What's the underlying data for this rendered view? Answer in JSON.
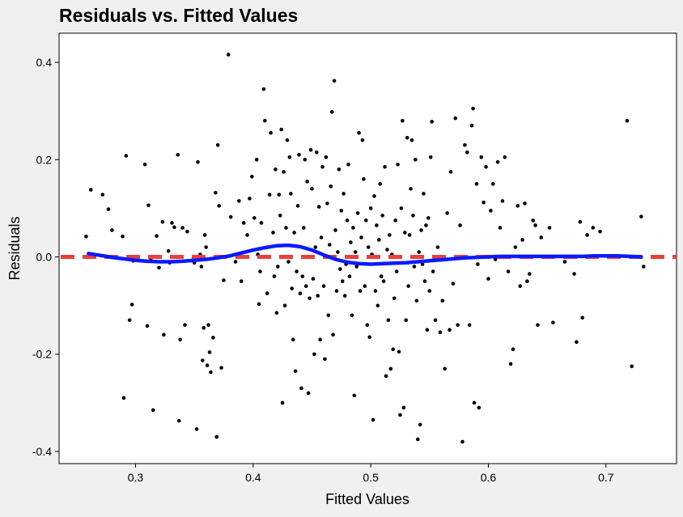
{
  "chart_data": {
    "type": "scatter",
    "title": "Residuals vs. Fitted Values",
    "xlabel": "Fitted Values",
    "ylabel": "Residuals",
    "xlim": [
      0.235,
      0.76
    ],
    "ylim": [
      -0.425,
      0.46
    ],
    "x_ticks": [
      0.3,
      0.4,
      0.5,
      0.6,
      0.7
    ],
    "x_tick_labels": [
      "0.3",
      "0.4",
      "0.5",
      "0.6",
      "0.7"
    ],
    "y_ticks": [
      -0.4,
      -0.2,
      0.0,
      0.2,
      0.4
    ],
    "y_tick_labels": [
      "-0.4",
      "-0.2",
      "0.0",
      "0.2",
      "0.4"
    ],
    "grid": false,
    "colors": {
      "points": "#000000",
      "reference_line": "#e8413c",
      "smooth_line": "#0a1aff",
      "panel": "#ffffff",
      "background": "#f0f0f0"
    },
    "reference_line": {
      "y": 0,
      "style": "dashed"
    },
    "points": [
      [
        0.258,
        0.042
      ],
      [
        0.262,
        0.138
      ],
      [
        0.272,
        0.128
      ],
      [
        0.277,
        0.098
      ],
      [
        0.28,
        0.055
      ],
      [
        0.289,
        0.042
      ],
      [
        0.29,
        -0.29
      ],
      [
        0.292,
        0.208
      ],
      [
        0.295,
        -0.13
      ],
      [
        0.297,
        -0.098
      ],
      [
        0.298,
        -0.008
      ],
      [
        0.308,
        0.19
      ],
      [
        0.31,
        -0.142
      ],
      [
        0.311,
        0.106
      ],
      [
        0.313,
        -0.003
      ],
      [
        0.315,
        -0.315
      ],
      [
        0.318,
        0.043
      ],
      [
        0.32,
        -0.022
      ],
      [
        0.323,
        0.072
      ],
      [
        0.324,
        -0.16
      ],
      [
        0.328,
        0.012
      ],
      [
        0.329,
        -0.012
      ],
      [
        0.331,
        0.07
      ],
      [
        0.333,
        0.061
      ],
      [
        0.336,
        0.21
      ],
      [
        0.337,
        -0.337
      ],
      [
        0.338,
        -0.17
      ],
      [
        0.34,
        0.06
      ],
      [
        0.342,
        -0.14
      ],
      [
        0.344,
        0.052
      ],
      [
        0.35,
        -0.012
      ],
      [
        0.352,
        -0.354
      ],
      [
        0.353,
        0.195
      ],
      [
        0.355,
        0.005
      ],
      [
        0.356,
        -0.02
      ],
      [
        0.357,
        -0.213
      ],
      [
        0.358,
        -0.146
      ],
      [
        0.359,
        0.045
      ],
      [
        0.36,
        0.02
      ],
      [
        0.361,
        -0.223
      ],
      [
        0.362,
        -0.14
      ],
      [
        0.363,
        -0.196
      ],
      [
        0.364,
        -0.237
      ],
      [
        0.366,
        -0.166
      ],
      [
        0.368,
        0.132
      ],
      [
        0.369,
        -0.37
      ],
      [
        0.37,
        0.23
      ],
      [
        0.371,
        0.105
      ],
      [
        0.373,
        -0.228
      ],
      [
        0.375,
        -0.048
      ],
      [
        0.379,
        0.416
      ],
      [
        0.381,
        0.082
      ],
      [
        0.385,
        -0.01
      ],
      [
        0.388,
        0.115
      ],
      [
        0.39,
        -0.05
      ],
      [
        0.392,
        0.07
      ],
      [
        0.395,
        0.045
      ],
      [
        0.397,
        0.12
      ],
      [
        0.399,
        0.165
      ],
      [
        0.401,
        0.08
      ],
      [
        0.403,
        0.2
      ],
      [
        0.404,
        0.005
      ],
      [
        0.405,
        -0.097
      ],
      [
        0.406,
        -0.03
      ],
      [
        0.407,
        0.07
      ],
      [
        0.409,
        0.345
      ],
      [
        0.41,
        0.28
      ],
      [
        0.412,
        -0.075
      ],
      [
        0.414,
        0.128
      ],
      [
        0.415,
        0.255
      ],
      [
        0.417,
        0.05
      ],
      [
        0.418,
        -0.04
      ],
      [
        0.419,
        0.18
      ],
      [
        0.42,
        -0.115
      ],
      [
        0.421,
        -0.02
      ],
      [
        0.422,
        0.128
      ],
      [
        0.423,
        0.085
      ],
      [
        0.424,
        0.262
      ],
      [
        0.425,
        -0.3
      ],
      [
        0.426,
        0.175
      ],
      [
        0.427,
        -0.1
      ],
      [
        0.428,
        0.06
      ],
      [
        0.429,
        0.24
      ],
      [
        0.43,
        -0.01
      ],
      [
        0.431,
        0.205
      ],
      [
        0.432,
        0.13
      ],
      [
        0.433,
        -0.065
      ],
      [
        0.434,
        -0.17
      ],
      [
        0.435,
        0.05
      ],
      [
        0.436,
        -0.235
      ],
      [
        0.437,
        -0.03
      ],
      [
        0.438,
        0.105
      ],
      [
        0.439,
        0.21
      ],
      [
        0.44,
        -0.075
      ],
      [
        0.441,
        -0.27
      ],
      [
        0.442,
        -0.04
      ],
      [
        0.443,
        0.06
      ],
      [
        0.444,
        0.2
      ],
      [
        0.445,
        -0.06
      ],
      [
        0.446,
        0.155
      ],
      [
        0.447,
        -0.28
      ],
      [
        0.448,
        -0.085
      ],
      [
        0.449,
        0.22
      ],
      [
        0.45,
        0.14
      ],
      [
        0.451,
        -0.045
      ],
      [
        0.452,
        -0.2
      ],
      [
        0.453,
        0.02
      ],
      [
        0.454,
        0.215
      ],
      [
        0.455,
        -0.08
      ],
      [
        0.456,
        0.103
      ],
      [
        0.457,
        -0.17
      ],
      [
        0.458,
        0.04
      ],
      [
        0.459,
        0.185
      ],
      [
        0.46,
        -0.06
      ],
      [
        0.461,
        -0.21
      ],
      [
        0.462,
        0.205
      ],
      [
        0.463,
        0.11
      ],
      [
        0.464,
        -0.12
      ],
      [
        0.465,
        0.025
      ],
      [
        0.466,
        0.145
      ],
      [
        0.467,
        0.298
      ],
      [
        0.468,
        -0.16
      ],
      [
        0.469,
        0.362
      ],
      [
        0.47,
        0.055
      ],
      [
        0.471,
        -0.07
      ],
      [
        0.472,
        0.01
      ],
      [
        0.473,
        0.18
      ],
      [
        0.474,
        -0.025
      ],
      [
        0.475,
        0.095
      ],
      [
        0.476,
        -0.05
      ],
      [
        0.477,
        0.13
      ],
      [
        0.478,
        -0.08
      ],
      [
        0.479,
        -0.015
      ],
      [
        0.48,
        0.075
      ],
      [
        0.481,
        0.19
      ],
      [
        0.482,
        -0.04
      ],
      [
        0.483,
        0.03
      ],
      [
        0.484,
        -0.12
      ],
      [
        0.485,
        0.06
      ],
      [
        0.486,
        -0.285
      ],
      [
        0.487,
        0.01
      ],
      [
        0.488,
        -0.02
      ],
      [
        0.489,
        0.09
      ],
      [
        0.49,
        0.255
      ],
      [
        0.491,
        -0.07
      ],
      [
        0.492,
        0.04
      ],
      [
        0.493,
        0.24
      ],
      [
        0.494,
        0.16
      ],
      [
        0.495,
        -0.06
      ],
      [
        0.496,
        0.075
      ],
      [
        0.497,
        -0.14
      ],
      [
        0.498,
        0.02
      ],
      [
        0.499,
        -0.165
      ],
      [
        0.5,
        0.1
      ],
      [
        0.501,
        0.005
      ],
      [
        0.502,
        -0.335
      ],
      [
        0.503,
        0.125
      ],
      [
        0.504,
        -0.07
      ],
      [
        0.505,
        0.065
      ],
      [
        0.506,
        -0.1
      ],
      [
        0.507,
        0.035
      ],
      [
        0.508,
        0.15
      ],
      [
        0.509,
        -0.04
      ],
      [
        0.51,
        0.085
      ],
      [
        0.511,
        -0.05
      ],
      [
        0.512,
        0.185
      ],
      [
        0.513,
        -0.245
      ],
      [
        0.514,
        0.015
      ],
      [
        0.515,
        -0.13
      ],
      [
        0.516,
        0.045
      ],
      [
        0.517,
        -0.23
      ],
      [
        0.518,
        0.005
      ],
      [
        0.519,
        -0.19
      ],
      [
        0.52,
        -0.085
      ],
      [
        0.521,
        0.075
      ],
      [
        0.522,
        -0.03
      ],
      [
        0.523,
        0.19
      ],
      [
        0.524,
        -0.195
      ],
      [
        0.525,
        -0.325
      ],
      [
        0.526,
        0.1
      ],
      [
        0.527,
        0.28
      ],
      [
        0.528,
        -0.31
      ],
      [
        0.529,
        0.05
      ],
      [
        0.53,
        -0.13
      ],
      [
        0.531,
        0.245
      ],
      [
        0.532,
        -0.06
      ],
      [
        0.533,
        0.045
      ],
      [
        0.534,
        0.14
      ],
      [
        0.535,
        0.24
      ],
      [
        0.536,
        0.085
      ],
      [
        0.537,
        -0.02
      ],
      [
        0.538,
        0.2
      ],
      [
        0.539,
        -0.09
      ],
      [
        0.54,
        -0.375
      ],
      [
        0.541,
        0.01
      ],
      [
        0.542,
        -0.345
      ],
      [
        0.543,
        0.055
      ],
      [
        0.544,
        -0.015
      ],
      [
        0.545,
        0.13
      ],
      [
        0.546,
        -0.05
      ],
      [
        0.547,
        0.065
      ],
      [
        0.548,
        -0.15
      ],
      [
        0.549,
        0.08
      ],
      [
        0.55,
        -0.07
      ],
      [
        0.551,
        0.205
      ],
      [
        0.552,
        0.278
      ],
      [
        0.553,
        -0.03
      ],
      [
        0.555,
        -0.13
      ],
      [
        0.557,
        0.02
      ],
      [
        0.559,
        -0.155
      ],
      [
        0.561,
        -0.09
      ],
      [
        0.563,
        -0.23
      ],
      [
        0.565,
        0.09
      ],
      [
        0.567,
        -0.15
      ],
      [
        0.568,
        0.175
      ],
      [
        0.57,
        -0.055
      ],
      [
        0.572,
        0.285
      ],
      [
        0.574,
        -0.14
      ],
      [
        0.576,
        0.065
      ],
      [
        0.578,
        -0.38
      ],
      [
        0.58,
        0.23
      ],
      [
        0.582,
        0.215
      ],
      [
        0.584,
        -0.14
      ],
      [
        0.586,
        0.27
      ],
      [
        0.587,
        0.305
      ],
      [
        0.588,
        -0.3
      ],
      [
        0.59,
        0.15
      ],
      [
        0.591,
        -0.015
      ],
      [
        0.592,
        -0.31
      ],
      [
        0.594,
        0.205
      ],
      [
        0.596,
        0.112
      ],
      [
        0.598,
        0.185
      ],
      [
        0.6,
        -0.045
      ],
      [
        0.602,
        0.095
      ],
      [
        0.604,
        0.15
      ],
      [
        0.606,
        -0.005
      ],
      [
        0.608,
        0.195
      ],
      [
        0.61,
        0.06
      ],
      [
        0.612,
        0.115
      ],
      [
        0.614,
        0.205
      ],
      [
        0.617,
        -0.03
      ],
      [
        0.619,
        -0.22
      ],
      [
        0.621,
        -0.19
      ],
      [
        0.623,
        0.02
      ],
      [
        0.625,
        0.105
      ],
      [
        0.627,
        -0.06
      ],
      [
        0.629,
        0.035
      ],
      [
        0.631,
        0.11
      ],
      [
        0.633,
        -0.05
      ],
      [
        0.635,
        -0.035
      ],
      [
        0.638,
        0.075
      ],
      [
        0.64,
        0.065
      ],
      [
        0.642,
        -0.14
      ],
      [
        0.645,
        0.04
      ],
      [
        0.652,
        0.06
      ],
      [
        0.655,
        -0.135
      ],
      [
        0.665,
        -0.01
      ],
      [
        0.673,
        -0.035
      ],
      [
        0.675,
        -0.175
      ],
      [
        0.678,
        0.072
      ],
      [
        0.68,
        -0.125
      ],
      [
        0.684,
        0.045
      ],
      [
        0.689,
        0.06
      ],
      [
        0.695,
        0.052
      ],
      [
        0.708,
        0.0
      ],
      [
        0.718,
        0.28
      ],
      [
        0.722,
        -0.225
      ],
      [
        0.728,
        0.0
      ],
      [
        0.73,
        0.083
      ],
      [
        0.732,
        -0.02
      ]
    ],
    "smooth_line": {
      "x": [
        0.26,
        0.27,
        0.28,
        0.29,
        0.3,
        0.31,
        0.32,
        0.33,
        0.34,
        0.35,
        0.36,
        0.37,
        0.38,
        0.39,
        0.4,
        0.41,
        0.42,
        0.43,
        0.44,
        0.45,
        0.46,
        0.47,
        0.48,
        0.49,
        0.5,
        0.51,
        0.52,
        0.53,
        0.54,
        0.55,
        0.56,
        0.57,
        0.58,
        0.59,
        0.6,
        0.61,
        0.62,
        0.63,
        0.64,
        0.65,
        0.66,
        0.67,
        0.68,
        0.69,
        0.7,
        0.71,
        0.72,
        0.73
      ],
      "y": [
        0.007,
        0.003,
        -0.001,
        -0.004,
        -0.007,
        -0.009,
        -0.01,
        -0.01,
        -0.009,
        -0.007,
        -0.005,
        -0.002,
        0.002,
        0.008,
        0.014,
        0.019,
        0.023,
        0.024,
        0.021,
        0.014,
        0.004,
        -0.005,
        -0.011,
        -0.014,
        -0.015,
        -0.014,
        -0.013,
        -0.012,
        -0.01,
        -0.008,
        -0.006,
        -0.004,
        -0.002,
        -0.001,
        0.0,
        0.001,
        0.001,
        0.001,
        0.001,
        0.001,
        0.001,
        0.001,
        0.001,
        0.002,
        0.002,
        0.002,
        0.001,
        0.0
      ]
    }
  }
}
